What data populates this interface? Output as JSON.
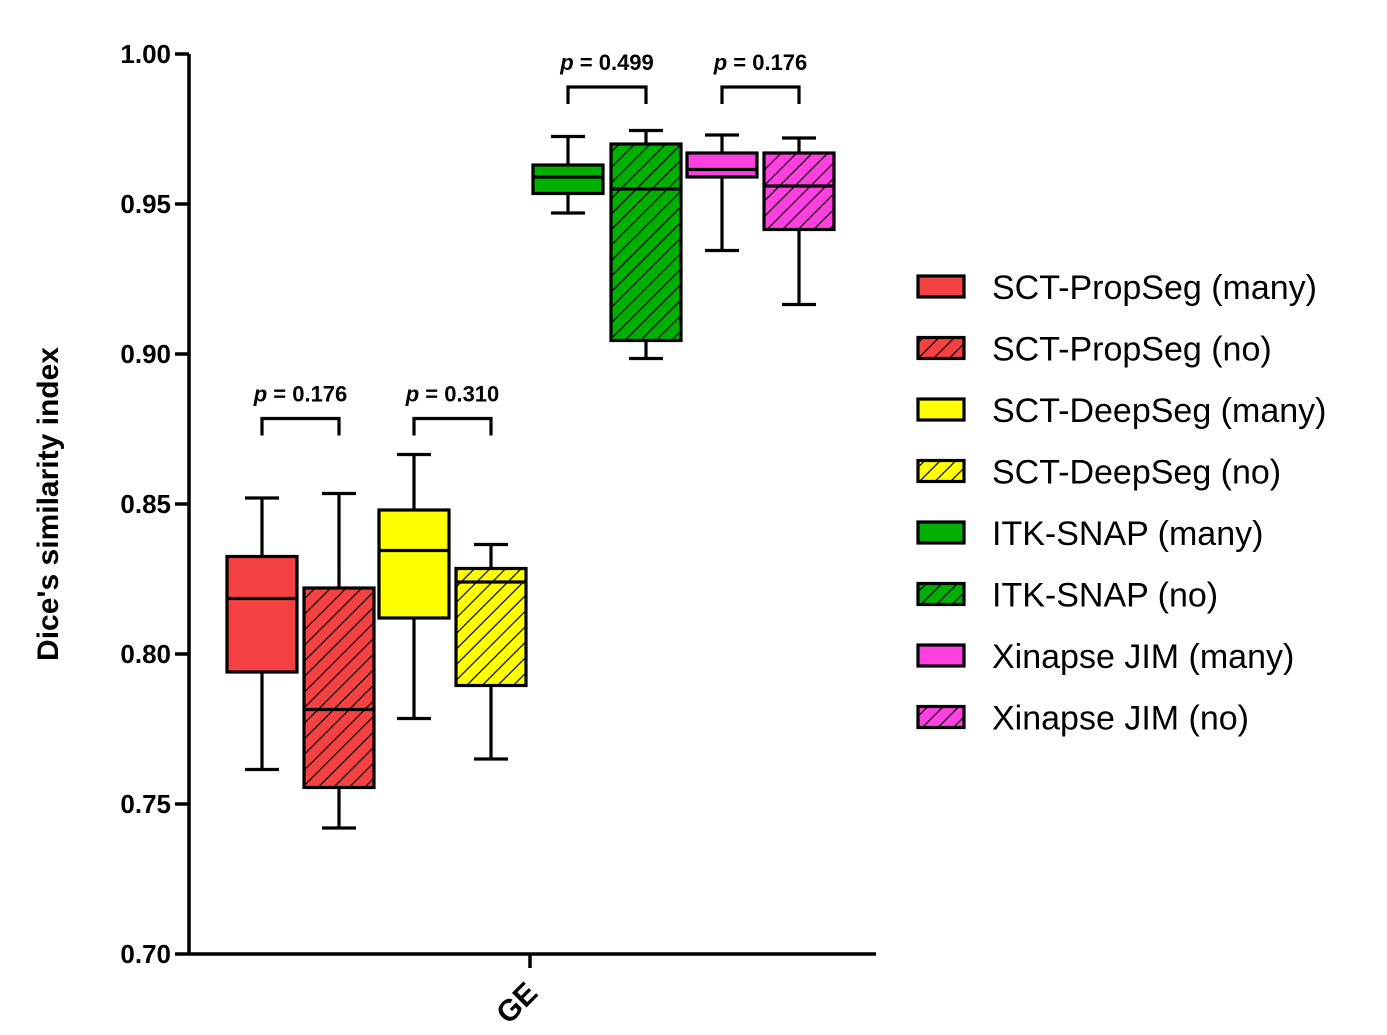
{
  "chart_data": {
    "type": "box",
    "title": "",
    "xlabel": "",
    "ylabel": "Dice's similarity index",
    "ylim": [
      0.7,
      1.0
    ],
    "yticks": [
      "0.70",
      "0.75",
      "0.80",
      "0.85",
      "0.90",
      "0.95",
      "1.00"
    ],
    "ytick_values": [
      0.7,
      0.75,
      0.8,
      0.85,
      0.9,
      0.95,
      1.0
    ],
    "categories": [
      "GE"
    ],
    "series": [
      {
        "name": "SCT-PropSeg (many)",
        "color": "#f44242",
        "hatch": false,
        "whisker_low": 0.7615,
        "q1": 0.794,
        "median": 0.8185,
        "q3": 0.8325,
        "whisker_high": 0.852
      },
      {
        "name": "SCT-PropSeg (no)",
        "color": "#f44242",
        "hatch": true,
        "whisker_low": 0.742,
        "q1": 0.7555,
        "median": 0.7815,
        "q3": 0.822,
        "whisker_high": 0.8535
      },
      {
        "name": "SCT-DeepSeg (many)",
        "color": "#ffff00",
        "hatch": false,
        "whisker_low": 0.7785,
        "q1": 0.812,
        "median": 0.8345,
        "q3": 0.848,
        "whisker_high": 0.8665
      },
      {
        "name": "SCT-DeepSeg (no)",
        "color": "#ffff00",
        "hatch": true,
        "whisker_low": 0.765,
        "q1": 0.7895,
        "median": 0.824,
        "q3": 0.8285,
        "whisker_high": 0.8365
      },
      {
        "name": "ITK-SNAP (many)",
        "color": "#00b000",
        "hatch": false,
        "whisker_low": 0.947,
        "q1": 0.9535,
        "median": 0.959,
        "q3": 0.963,
        "whisker_high": 0.9725
      },
      {
        "name": "ITK-SNAP (no)",
        "color": "#00b000",
        "hatch": true,
        "whisker_low": 0.8985,
        "q1": 0.9045,
        "median": 0.955,
        "q3": 0.97,
        "whisker_high": 0.9745
      },
      {
        "name": "Xinapse JIM (many)",
        "color": "#ff40e0",
        "hatch": false,
        "whisker_low": 0.9345,
        "q1": 0.959,
        "median": 0.9615,
        "q3": 0.967,
        "whisker_high": 0.973
      },
      {
        "name": "Xinapse JIM (no)",
        "color": "#ff40e0",
        "hatch": true,
        "whisker_low": 0.9165,
        "q1": 0.9415,
        "median": 0.956,
        "q3": 0.967,
        "whisker_high": 0.972
      }
    ],
    "annotations": [
      {
        "label": "p = 0.176",
        "p_value": "0.176",
        "pair": [
          0,
          1
        ],
        "bracket_y": 0.8785
      },
      {
        "label": "p = 0.310",
        "p_value": "0.310",
        "pair": [
          2,
          3
        ],
        "bracket_y": 0.8785
      },
      {
        "label": "p = 0.499",
        "p_value": "0.499",
        "pair": [
          4,
          5
        ],
        "bracket_y": 0.989
      },
      {
        "label": "p = 0.176",
        "p_value": "0.176",
        "pair": [
          6,
          7
        ],
        "bracket_y": 0.989
      }
    ],
    "legend_position": "right"
  }
}
